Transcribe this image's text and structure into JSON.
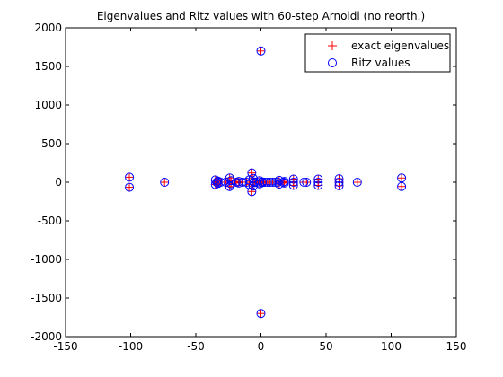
{
  "chart_data": {
    "type": "scatter",
    "title": "Eigenvalues and Ritz values with 60-step Arnoldi (no reorth.)",
    "xlabel": "",
    "ylabel": "",
    "xlim": [
      -150,
      150
    ],
    "ylim": [
      -2000,
      2000
    ],
    "xticks": [
      -150,
      -100,
      -50,
      0,
      50,
      100,
      150
    ],
    "yticks": [
      -2000,
      -1500,
      -1000,
      -500,
      0,
      500,
      1000,
      1500,
      2000
    ],
    "grid": false,
    "legend_position": "top-right",
    "series": [
      {
        "name": "exact eigenvalues",
        "marker": "plus",
        "color": "#ff0000",
        "points": [
          [
            -101,
            65
          ],
          [
            -101,
            -65
          ],
          [
            -74,
            0
          ],
          [
            -35,
            30
          ],
          [
            -35,
            -30
          ],
          [
            -34,
            0
          ],
          [
            -33,
            15
          ],
          [
            -33,
            -15
          ],
          [
            -31,
            0
          ],
          [
            -27,
            0
          ],
          [
            -24,
            55
          ],
          [
            -24,
            -55
          ],
          [
            -23,
            20
          ],
          [
            -23,
            -20
          ],
          [
            -19,
            0
          ],
          [
            -17,
            10
          ],
          [
            -17,
            -10
          ],
          [
            -14,
            0
          ],
          [
            -11,
            0
          ],
          [
            -9,
            30
          ],
          [
            -9,
            -30
          ],
          [
            -7,
            120
          ],
          [
            -7,
            -120
          ],
          [
            -6,
            50
          ],
          [
            -6,
            -50
          ],
          [
            -5,
            5
          ],
          [
            -5,
            -5
          ],
          [
            -3,
            0
          ],
          [
            -1,
            20
          ],
          [
            -1,
            -20
          ],
          [
            0,
            1700
          ],
          [
            0,
            -1700
          ],
          [
            1,
            5
          ],
          [
            1,
            -5
          ],
          [
            3,
            0
          ],
          [
            5,
            0
          ],
          [
            7,
            0
          ],
          [
            9,
            0
          ],
          [
            11,
            0
          ],
          [
            13,
            0
          ],
          [
            14,
            25
          ],
          [
            14,
            -25
          ],
          [
            17,
            0
          ],
          [
            18,
            10
          ],
          [
            18,
            -10
          ],
          [
            25,
            0
          ],
          [
            25,
            40
          ],
          [
            25,
            -40
          ],
          [
            33,
            0
          ],
          [
            35,
            0
          ],
          [
            44,
            0
          ],
          [
            44,
            40
          ],
          [
            44,
            -40
          ],
          [
            60,
            45
          ],
          [
            60,
            -45
          ],
          [
            60,
            0
          ],
          [
            74,
            0
          ],
          [
            108,
            55
          ],
          [
            108,
            -55
          ]
        ]
      },
      {
        "name": "Ritz values",
        "marker": "circle",
        "color": "#0000ff",
        "points": [
          [
            -101,
            65
          ],
          [
            -101,
            -65
          ],
          [
            -74,
            0
          ],
          [
            -35,
            30
          ],
          [
            -35,
            -30
          ],
          [
            -34,
            0
          ],
          [
            -33,
            15
          ],
          [
            -33,
            -15
          ],
          [
            -31,
            0
          ],
          [
            -27,
            0
          ],
          [
            -24,
            55
          ],
          [
            -24,
            -55
          ],
          [
            -23,
            20
          ],
          [
            -23,
            -20
          ],
          [
            -19,
            0
          ],
          [
            -17,
            10
          ],
          [
            -17,
            -10
          ],
          [
            -14,
            0
          ],
          [
            -11,
            0
          ],
          [
            -9,
            30
          ],
          [
            -9,
            -30
          ],
          [
            -7,
            120
          ],
          [
            -7,
            -120
          ],
          [
            -6,
            50
          ],
          [
            -6,
            -50
          ],
          [
            -5,
            5
          ],
          [
            -5,
            -5
          ],
          [
            -3,
            0
          ],
          [
            -1,
            20
          ],
          [
            -1,
            -20
          ],
          [
            0,
            1700
          ],
          [
            0,
            -1700
          ],
          [
            1,
            5
          ],
          [
            1,
            -5
          ],
          [
            3,
            0
          ],
          [
            5,
            0
          ],
          [
            7,
            0
          ],
          [
            9,
            0
          ],
          [
            11,
            0
          ],
          [
            13,
            0
          ],
          [
            14,
            25
          ],
          [
            14,
            -25
          ],
          [
            17,
            0
          ],
          [
            18,
            10
          ],
          [
            18,
            -10
          ],
          [
            25,
            0
          ],
          [
            25,
            40
          ],
          [
            25,
            -40
          ],
          [
            33,
            0
          ],
          [
            35,
            0
          ],
          [
            44,
            0
          ],
          [
            44,
            40
          ],
          [
            44,
            -40
          ],
          [
            60,
            45
          ],
          [
            60,
            -45
          ],
          [
            60,
            0
          ],
          [
            74,
            0
          ],
          [
            108,
            55
          ],
          [
            108,
            -55
          ]
        ]
      }
    ]
  }
}
